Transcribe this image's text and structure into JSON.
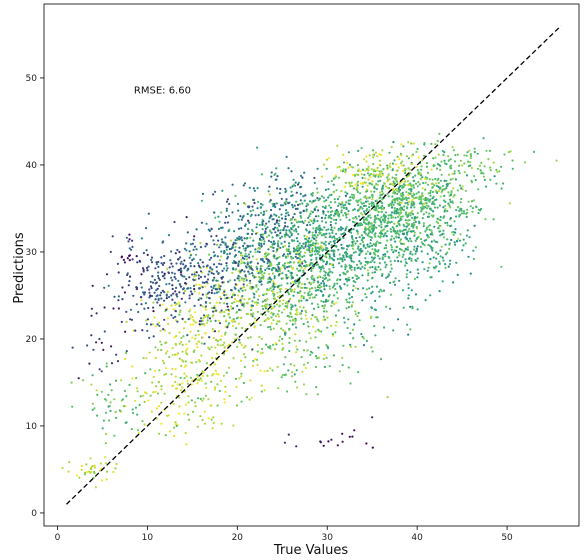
{
  "chart_data": {
    "type": "scatter",
    "xlabel": "True Values",
    "ylabel": "Predictions",
    "xlim": [
      -1.5,
      58
    ],
    "ylim": [
      -1.5,
      58.5
    ],
    "xticks": [
      0,
      10,
      20,
      30,
      40,
      50
    ],
    "yticks": [
      0,
      10,
      20,
      30,
      40,
      50
    ],
    "grid": false,
    "annotation": {
      "text": "RMSE: 6.60",
      "x": 8.5,
      "y": 48.7
    },
    "reference_line": {
      "style": "dashed",
      "color": "#000000",
      "x": [
        1,
        56
      ],
      "y": [
        1,
        56
      ]
    },
    "colormap": [
      "#440154",
      "#3b528b",
      "#21918c",
      "#5ec962",
      "#fde725"
    ],
    "clusters": [
      {
        "cx": 29,
        "cy": 30,
        "sx": 4.5,
        "sy": 4,
        "n": 900,
        "c": 0.62
      },
      {
        "cx": 37,
        "cy": 34,
        "sx": 4,
        "sy": 3,
        "n": 700,
        "c": 0.66
      },
      {
        "cx": 41,
        "cy": 36,
        "sx": 3.5,
        "sy": 2.5,
        "n": 300,
        "c": 0.72
      },
      {
        "cx": 24,
        "cy": 25,
        "sx": 3.5,
        "sy": 3.5,
        "n": 450,
        "c": 0.82
      },
      {
        "cx": 17,
        "cy": 20,
        "sx": 3.5,
        "sy": 4,
        "n": 300,
        "c": 0.88
      },
      {
        "cx": 13,
        "cy": 14,
        "sx": 3,
        "sy": 3,
        "n": 120,
        "c": 0.9
      },
      {
        "cx": 15,
        "cy": 27,
        "sx": 3.5,
        "sy": 3,
        "n": 330,
        "c": 0.3
      },
      {
        "cx": 22,
        "cy": 31,
        "sx": 3,
        "sy": 3,
        "n": 220,
        "c": 0.4
      },
      {
        "cx": 10,
        "cy": 26,
        "sx": 2.5,
        "sy": 3,
        "n": 80,
        "c": 0.2
      },
      {
        "cx": 25,
        "cy": 35,
        "sx": 2.5,
        "sy": 2,
        "n": 90,
        "c": 0.35
      },
      {
        "cx": 36,
        "cy": 39,
        "sx": 3,
        "sy": 1.5,
        "n": 150,
        "c": 0.9
      },
      {
        "cx": 45,
        "cy": 40,
        "sx": 3,
        "sy": 1.2,
        "n": 80,
        "c": 0.75
      },
      {
        "cx": 6,
        "cy": 13,
        "sx": 2,
        "sy": 2,
        "n": 50,
        "c": 0.7
      },
      {
        "cx": 4,
        "cy": 5,
        "sx": 1.5,
        "sy": 0.7,
        "n": 35,
        "c": 0.9
      },
      {
        "cx": 30,
        "cy": 8,
        "sx": 2.5,
        "sy": 0.6,
        "n": 15,
        "c": 0.05
      },
      {
        "cx": 36,
        "cy": 25,
        "sx": 3,
        "sy": 3,
        "n": 60,
        "c": 0.6
      },
      {
        "cx": 29,
        "cy": 18,
        "sx": 4,
        "sy": 2.5,
        "n": 60,
        "c": 0.75
      },
      {
        "cx": 43,
        "cy": 31,
        "sx": 2,
        "sy": 2,
        "n": 50,
        "c": 0.55
      },
      {
        "cx": 8,
        "cy": 29.3,
        "sx": 0.8,
        "sy": 0.3,
        "n": 12,
        "c": 0.05
      },
      {
        "cx": 5,
        "cy": 20,
        "sx": 1.2,
        "sy": 2.5,
        "n": 20,
        "c": 0.15
      }
    ],
    "isolated_points": [
      {
        "x": 55.5,
        "y": 40.5,
        "c": 0.85
      },
      {
        "x": 53,
        "y": 41.5,
        "c": 0.7
      },
      {
        "x": 52,
        "y": 40.3,
        "c": 0.8
      },
      {
        "x": 35,
        "y": 11,
        "c": 0.1
      },
      {
        "x": 39,
        "y": 20.5,
        "c": 0.45
      },
      {
        "x": 42.5,
        "y": 25.5,
        "c": 0.5
      },
      {
        "x": 44,
        "y": 26.5,
        "c": 0.45
      },
      {
        "x": 8,
        "y": 32,
        "c": 0.05
      },
      {
        "x": 7.5,
        "y": 28.8,
        "c": 0.1
      },
      {
        "x": 33,
        "y": 9.5,
        "c": 0.05
      }
    ]
  }
}
